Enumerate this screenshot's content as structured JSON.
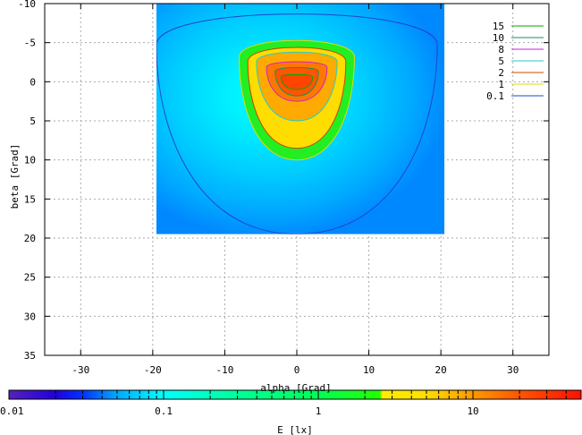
{
  "chart_data": {
    "type": "heatmap",
    "title": "",
    "xlabel": "alpha [Grad]",
    "ylabel": "beta [Grad]",
    "xlim": [
      -35,
      35
    ],
    "ylim": [
      -10,
      35
    ],
    "y_inverted": true,
    "x_ticks": [
      -30,
      -20,
      -10,
      0,
      10,
      20,
      30
    ],
    "y_ticks": [
      -10,
      -5,
      0,
      5,
      10,
      15,
      20,
      25,
      30,
      35
    ],
    "grid": true,
    "data_extent": {
      "x": [
        -19.5,
        20.5
      ],
      "y": [
        -10,
        19.5
      ]
    },
    "contour_levels": [
      {
        "label": "15",
        "color": "#00aa00",
        "value": 15,
        "halfwidth": 2.2,
        "top": -1.0,
        "bottom": 1.0
      },
      {
        "label": "10",
        "color": "#1a8f5a",
        "value": 10,
        "halfwidth": 3.0,
        "top": -2.0,
        "bottom": 1.8
      },
      {
        "label": "8",
        "color": "#cc22cc",
        "value": 8,
        "halfwidth": 4.2,
        "top": -2.8,
        "bottom": 2.5
      },
      {
        "label": "5",
        "color": "#22cccc",
        "value": 5,
        "halfwidth": 5.6,
        "top": -4.2,
        "bottom": 5.0
      },
      {
        "label": "2",
        "color": "#cc4400",
        "value": 2,
        "halfwidth": 6.8,
        "top": -5.0,
        "bottom": 8.5
      },
      {
        "label": "1",
        "color": "#dddd00",
        "value": 1,
        "halfwidth": 8.0,
        "top": -6.0,
        "bottom": 10.0
      },
      {
        "label": "0.1",
        "color": "#2244cc",
        "value": 0.1,
        "halfwidth": 19.5,
        "top": -10.0,
        "bottom": 19.5
      }
    ],
    "colorbar": {
      "label": "E [lx]",
      "scale": "log",
      "min": 0.01,
      "max": 50,
      "ticks": [
        {
          "value": 0.01,
          "label": "0.01"
        },
        {
          "value": 0.1,
          "label": "0.1"
        },
        {
          "value": 1,
          "label": "1"
        },
        {
          "value": 10,
          "label": "10"
        }
      ],
      "color_stops": [
        {
          "value": 0.01,
          "color": "#5522bb"
        },
        {
          "value": 0.02,
          "color": "#2200dd"
        },
        {
          "value": 0.03,
          "color": "#0033ff"
        },
        {
          "value": 0.05,
          "color": "#00aaff"
        },
        {
          "value": 0.1,
          "color": "#00ffff"
        },
        {
          "value": 0.3,
          "color": "#00ff99"
        },
        {
          "value": 1,
          "color": "#00ff55"
        },
        {
          "value": 2.5,
          "color": "#22ff00"
        },
        {
          "value": 2.6,
          "color": "#ffee00"
        },
        {
          "value": 5,
          "color": "#ffdd00"
        },
        {
          "value": 10,
          "color": "#ff9900"
        },
        {
          "value": 20,
          "color": "#ff5500"
        },
        {
          "value": 50,
          "color": "#ff1100"
        }
      ]
    }
  }
}
